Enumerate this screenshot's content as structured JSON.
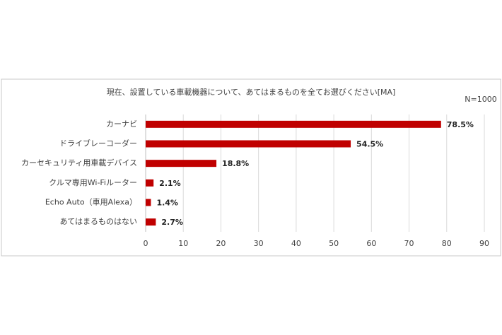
{
  "chart_data": {
    "type": "bar",
    "orientation": "horizontal",
    "title": "現在、設置している車載機器について、あてはまるものを全てお選びください[MA]",
    "annotation": "N=1000",
    "categories": [
      "カーナビ",
      "ドライブレーコーダー",
      "カーセキュリティ用車載デバイス",
      "クルマ専用Wi-Fiルーター",
      "Echo Auto（車用Alexa）",
      "あてはまるものはない"
    ],
    "values": [
      78.5,
      54.5,
      18.8,
      2.1,
      1.4,
      2.7
    ],
    "value_labels": [
      "78.5%",
      "54.5%",
      "18.8%",
      "2.1%",
      "1.4%",
      "2.7%"
    ],
    "color": "#c00000",
    "xlim": [
      0,
      90
    ],
    "xticks": [
      0,
      10,
      20,
      30,
      40,
      50,
      60,
      70,
      80,
      90
    ],
    "grid": true
  }
}
